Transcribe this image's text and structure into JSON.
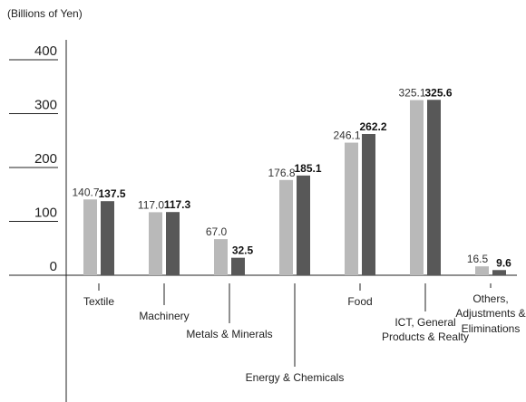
{
  "chart_data": {
    "type": "bar",
    "unit_label": "(Billions of Yen)",
    "categories": [
      [
        "Textile"
      ],
      [
        "Machinery"
      ],
      [
        "Metals & Minerals"
      ],
      [
        "Energy & Chemicals"
      ],
      [
        "Food"
      ],
      [
        "ICT, General",
        "Products & Realty"
      ],
      [
        "Others,",
        "Adjustments &",
        "Eliminations"
      ]
    ],
    "series": [
      {
        "values": [
          140.7,
          117.0,
          67.0,
          176.8,
          246.1,
          325.1,
          16.5
        ],
        "labels": [
          "140.7",
          "117.0",
          "67.0",
          "176.8",
          "246.1",
          "325.1",
          "16.5"
        ],
        "color": "#b9b9b9",
        "label_bold": false
      },
      {
        "values": [
          137.5,
          117.3,
          32.5,
          185.1,
          262.2,
          325.6,
          9.6
        ],
        "labels": [
          "137.5",
          "117.3",
          "32.5",
          "185.1",
          "262.2",
          "325.6",
          "9.6"
        ],
        "color": "#585858",
        "label_bold": true
      }
    ],
    "yticks": [
      "400",
      "300",
      "200",
      "100",
      "0"
    ],
    "ylim": [
      0,
      400
    ],
    "grid": false
  }
}
